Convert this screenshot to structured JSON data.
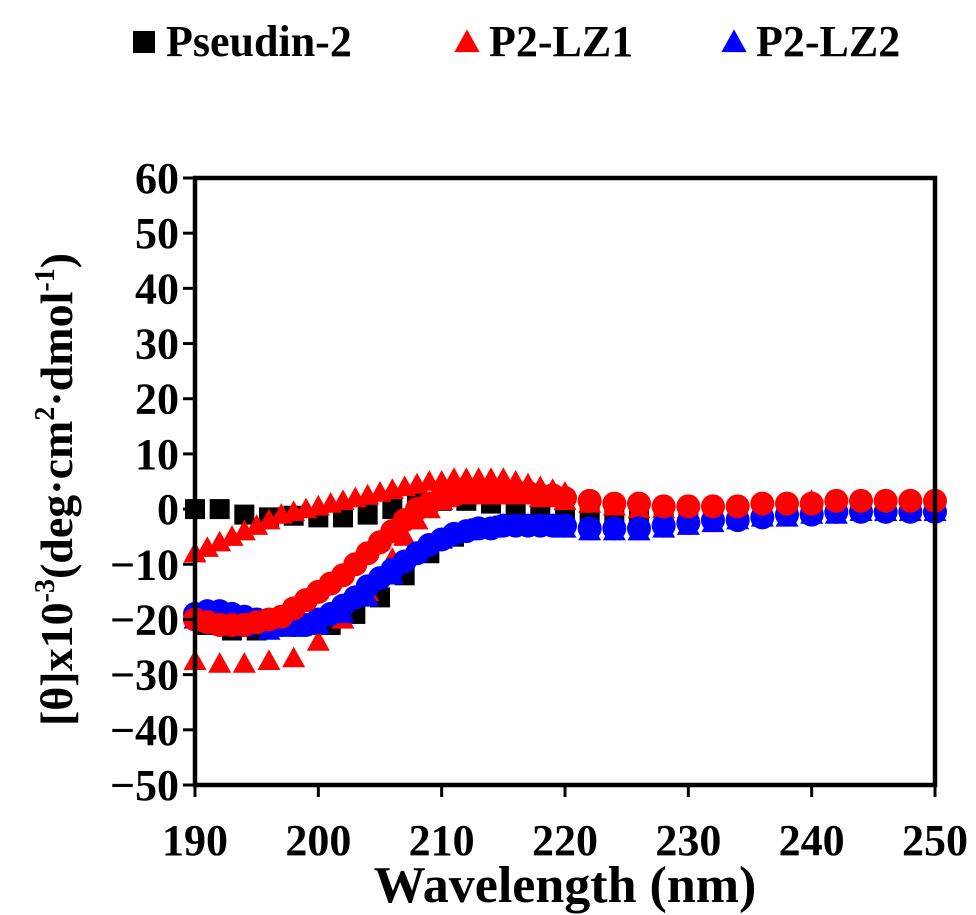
{
  "chart_data": {
    "type": "scatter",
    "xlabel": "Wavelength (nm)",
    "ylabel": {
      "prefix": "[θ]x10",
      "exp1": "-3",
      "middle": "(deg·cm",
      "exp2": "2",
      "middle2": "·dmol",
      "exp3": "-1",
      "suffix": ")"
    },
    "xlim": [
      190,
      250
    ],
    "ylim": [
      -50,
      60
    ],
    "xticks": [
      190,
      200,
      210,
      220,
      230,
      240,
      250
    ],
    "yticks": [
      -50,
      -40,
      -30,
      -20,
      -10,
      0,
      10,
      20,
      30,
      40,
      50,
      60
    ],
    "grid": false,
    "legend_position": "top",
    "legend": [
      {
        "label": "Pseudin-2",
        "marker": "square",
        "color": "#000000"
      },
      {
        "label": "P2-LZ1",
        "marker": "triangle",
        "color": "#ff0000"
      },
      {
        "label": "P2-LZ2",
        "marker": "triangle",
        "color": "#0000ff"
      }
    ],
    "series": [
      {
        "marker": "square",
        "color": "#000000",
        "points": [
          [
            190,
            0
          ],
          [
            192,
            0
          ],
          [
            194,
            -1
          ],
          [
            196,
            -1.5
          ],
          [
            198,
            -1.2
          ],
          [
            200,
            -1.5
          ],
          [
            202,
            -1.5
          ],
          [
            204,
            -1
          ],
          [
            206,
            0
          ],
          [
            208,
            1
          ],
          [
            210,
            1.5
          ],
          [
            212,
            1.5
          ],
          [
            214,
            1
          ],
          [
            216,
            0
          ],
          [
            218,
            -1
          ],
          [
            220,
            -1.5
          ],
          [
            222,
            -1.5
          ],
          [
            224,
            -1.5
          ],
          [
            226,
            -1.5
          ],
          [
            228,
            -1
          ],
          [
            230,
            -1
          ],
          [
            232,
            -0.5
          ],
          [
            234,
            0
          ],
          [
            236,
            0
          ],
          [
            238,
            0
          ],
          [
            240,
            0
          ],
          [
            242,
            0
          ],
          [
            244,
            0
          ],
          [
            246,
            0
          ],
          [
            248,
            0
          ],
          [
            250,
            0
          ]
        ]
      },
      {
        "marker": "square",
        "color": "#000000",
        "points": [
          [
            191,
            -21
          ],
          [
            193,
            -22
          ],
          [
            195,
            -22
          ],
          [
            197,
            -21
          ],
          [
            199,
            -21
          ],
          [
            201,
            -21
          ],
          [
            203,
            -19
          ],
          [
            205,
            -16
          ],
          [
            207,
            -12
          ],
          [
            209,
            -8
          ],
          [
            211,
            -5
          ],
          [
            213,
            -3.5
          ],
          [
            215,
            -3
          ]
        ]
      },
      {
        "marker": "triangle",
        "color": "#ff0000",
        "points": [
          [
            190,
            -27.5
          ],
          [
            192,
            -28
          ],
          [
            194,
            -28
          ],
          [
            196,
            -27.5
          ],
          [
            198,
            -27
          ],
          [
            200,
            -24
          ],
          [
            202,
            -20
          ],
          [
            204,
            -15
          ],
          [
            206,
            -9
          ],
          [
            207,
            -5
          ],
          [
            208,
            -2
          ],
          [
            209,
            0
          ],
          [
            210,
            1.5
          ],
          [
            212,
            2.5
          ],
          [
            214,
            2.5
          ],
          [
            216,
            2.5
          ],
          [
            218,
            2
          ],
          [
            220,
            1.5
          ],
          [
            222,
            1
          ],
          [
            224,
            0.5
          ],
          [
            226,
            0
          ],
          [
            228,
            0
          ],
          [
            230,
            0
          ],
          [
            232,
            0
          ],
          [
            234,
            0.5
          ],
          [
            236,
            0.5
          ],
          [
            238,
            1
          ],
          [
            240,
            1.5
          ],
          [
            242,
            1.5
          ],
          [
            244,
            1.5
          ],
          [
            246,
            1.5
          ],
          [
            248,
            1.5
          ],
          [
            250,
            1.5
          ]
        ]
      },
      {
        "marker": "triangle",
        "color": "#ff0000",
        "points": [
          [
            190,
            -8
          ],
          [
            191,
            -7
          ],
          [
            192,
            -6
          ],
          [
            193,
            -5
          ],
          [
            194,
            -4
          ],
          [
            195,
            -3
          ],
          [
            196,
            -2
          ],
          [
            197,
            -1
          ],
          [
            198,
            -0.5
          ],
          [
            199,
            0
          ],
          [
            200,
            0.5
          ],
          [
            201,
            1
          ],
          [
            202,
            1.5
          ],
          [
            203,
            2
          ],
          [
            204,
            2.5
          ],
          [
            205,
            3
          ],
          [
            206,
            3.5
          ],
          [
            207,
            4
          ],
          [
            208,
            4.5
          ],
          [
            209,
            5
          ],
          [
            210,
            5
          ],
          [
            211,
            5.5
          ],
          [
            212,
            5.5
          ],
          [
            213,
            5.5
          ],
          [
            214,
            5.5
          ],
          [
            215,
            5.5
          ],
          [
            216,
            5
          ],
          [
            217,
            4.5
          ],
          [
            218,
            4
          ],
          [
            219,
            3.5
          ],
          [
            220,
            3
          ]
        ]
      },
      {
        "marker": "triangle",
        "color": "#0000ff",
        "points": [
          [
            190,
            -20
          ],
          [
            192,
            -21
          ],
          [
            194,
            -21.5
          ],
          [
            196,
            -22
          ],
          [
            198,
            -21.5
          ],
          [
            200,
            -21
          ],
          [
            202,
            -19
          ],
          [
            204,
            -16
          ],
          [
            206,
            -12
          ],
          [
            208,
            -8
          ],
          [
            210,
            -5.5
          ],
          [
            212,
            -4
          ],
          [
            214,
            -3.5
          ],
          [
            216,
            -3
          ],
          [
            218,
            -3
          ],
          [
            220,
            -3.5
          ],
          [
            222,
            -4
          ],
          [
            224,
            -4
          ],
          [
            226,
            -4
          ],
          [
            228,
            -3.5
          ],
          [
            230,
            -3
          ],
          [
            232,
            -2.5
          ],
          [
            234,
            -2
          ],
          [
            236,
            -1.5
          ],
          [
            238,
            -1.5
          ],
          [
            240,
            -1
          ],
          [
            242,
            -1
          ],
          [
            244,
            -0.5
          ],
          [
            246,
            -0.5
          ],
          [
            248,
            -0.5
          ],
          [
            250,
            -0.5
          ]
        ]
      },
      {
        "marker": "circle",
        "color": "#0000ff",
        "points": [
          [
            190,
            -19
          ],
          [
            191,
            -18.5
          ],
          [
            192,
            -18.5
          ],
          [
            193,
            -19
          ],
          [
            194,
            -19.5
          ],
          [
            195,
            -20
          ],
          [
            196,
            -20.5
          ],
          [
            197,
            -21
          ],
          [
            198,
            -21
          ],
          [
            199,
            -21
          ],
          [
            200,
            -20
          ],
          [
            201,
            -19
          ],
          [
            202,
            -17.5
          ],
          [
            203,
            -16
          ],
          [
            204,
            -14
          ],
          [
            205,
            -12.5
          ],
          [
            206,
            -11
          ],
          [
            207,
            -9.5
          ],
          [
            208,
            -8
          ],
          [
            209,
            -6.5
          ],
          [
            210,
            -5.5
          ],
          [
            211,
            -4.5
          ],
          [
            212,
            -4
          ],
          [
            213,
            -3.5
          ],
          [
            214,
            -3.5
          ],
          [
            215,
            -3
          ],
          [
            216,
            -3
          ],
          [
            217,
            -3
          ],
          [
            218,
            -3
          ],
          [
            219,
            -3
          ],
          [
            220,
            -3
          ],
          [
            222,
            -3.5
          ],
          [
            224,
            -3.5
          ],
          [
            226,
            -3.5
          ],
          [
            228,
            -3
          ],
          [
            230,
            -2.5
          ],
          [
            232,
            -2
          ],
          [
            234,
            -2
          ],
          [
            236,
            -1.5
          ],
          [
            238,
            -1
          ],
          [
            240,
            -1
          ],
          [
            242,
            -0.5
          ],
          [
            244,
            -0.5
          ],
          [
            246,
            -0.5
          ],
          [
            248,
            -0.5
          ],
          [
            250,
            -0.5
          ]
        ]
      },
      {
        "marker": "circle",
        "color": "#ff0000",
        "points": [
          [
            190,
            -20
          ],
          [
            191,
            -20.5
          ],
          [
            192,
            -21
          ],
          [
            193,
            -21
          ],
          [
            194,
            -21
          ],
          [
            195,
            -20.5
          ],
          [
            196,
            -20
          ],
          [
            197,
            -19.5
          ],
          [
            198,
            -18
          ],
          [
            199,
            -16.5
          ],
          [
            200,
            -15
          ],
          [
            201,
            -13.5
          ],
          [
            202,
            -12
          ],
          [
            203,
            -10
          ],
          [
            204,
            -8
          ],
          [
            205,
            -6
          ],
          [
            206,
            -4
          ],
          [
            207,
            -2
          ],
          [
            208,
            0
          ],
          [
            209,
            1
          ],
          [
            210,
            2
          ],
          [
            211,
            2.5
          ],
          [
            212,
            3
          ],
          [
            213,
            3
          ],
          [
            214,
            3
          ],
          [
            215,
            3
          ],
          [
            216,
            3
          ],
          [
            217,
            3
          ],
          [
            218,
            2.5
          ],
          [
            219,
            2.5
          ],
          [
            220,
            2
          ],
          [
            222,
            1.5
          ],
          [
            224,
            1
          ],
          [
            226,
            1
          ],
          [
            228,
            0.5
          ],
          [
            230,
            0.5
          ],
          [
            232,
            0.5
          ],
          [
            234,
            0.5
          ],
          [
            236,
            1
          ],
          [
            238,
            1
          ],
          [
            240,
            1
          ],
          [
            242,
            1.5
          ],
          [
            244,
            1.5
          ],
          [
            246,
            1.5
          ],
          [
            248,
            1.5
          ],
          [
            250,
            1.5
          ]
        ]
      }
    ]
  }
}
